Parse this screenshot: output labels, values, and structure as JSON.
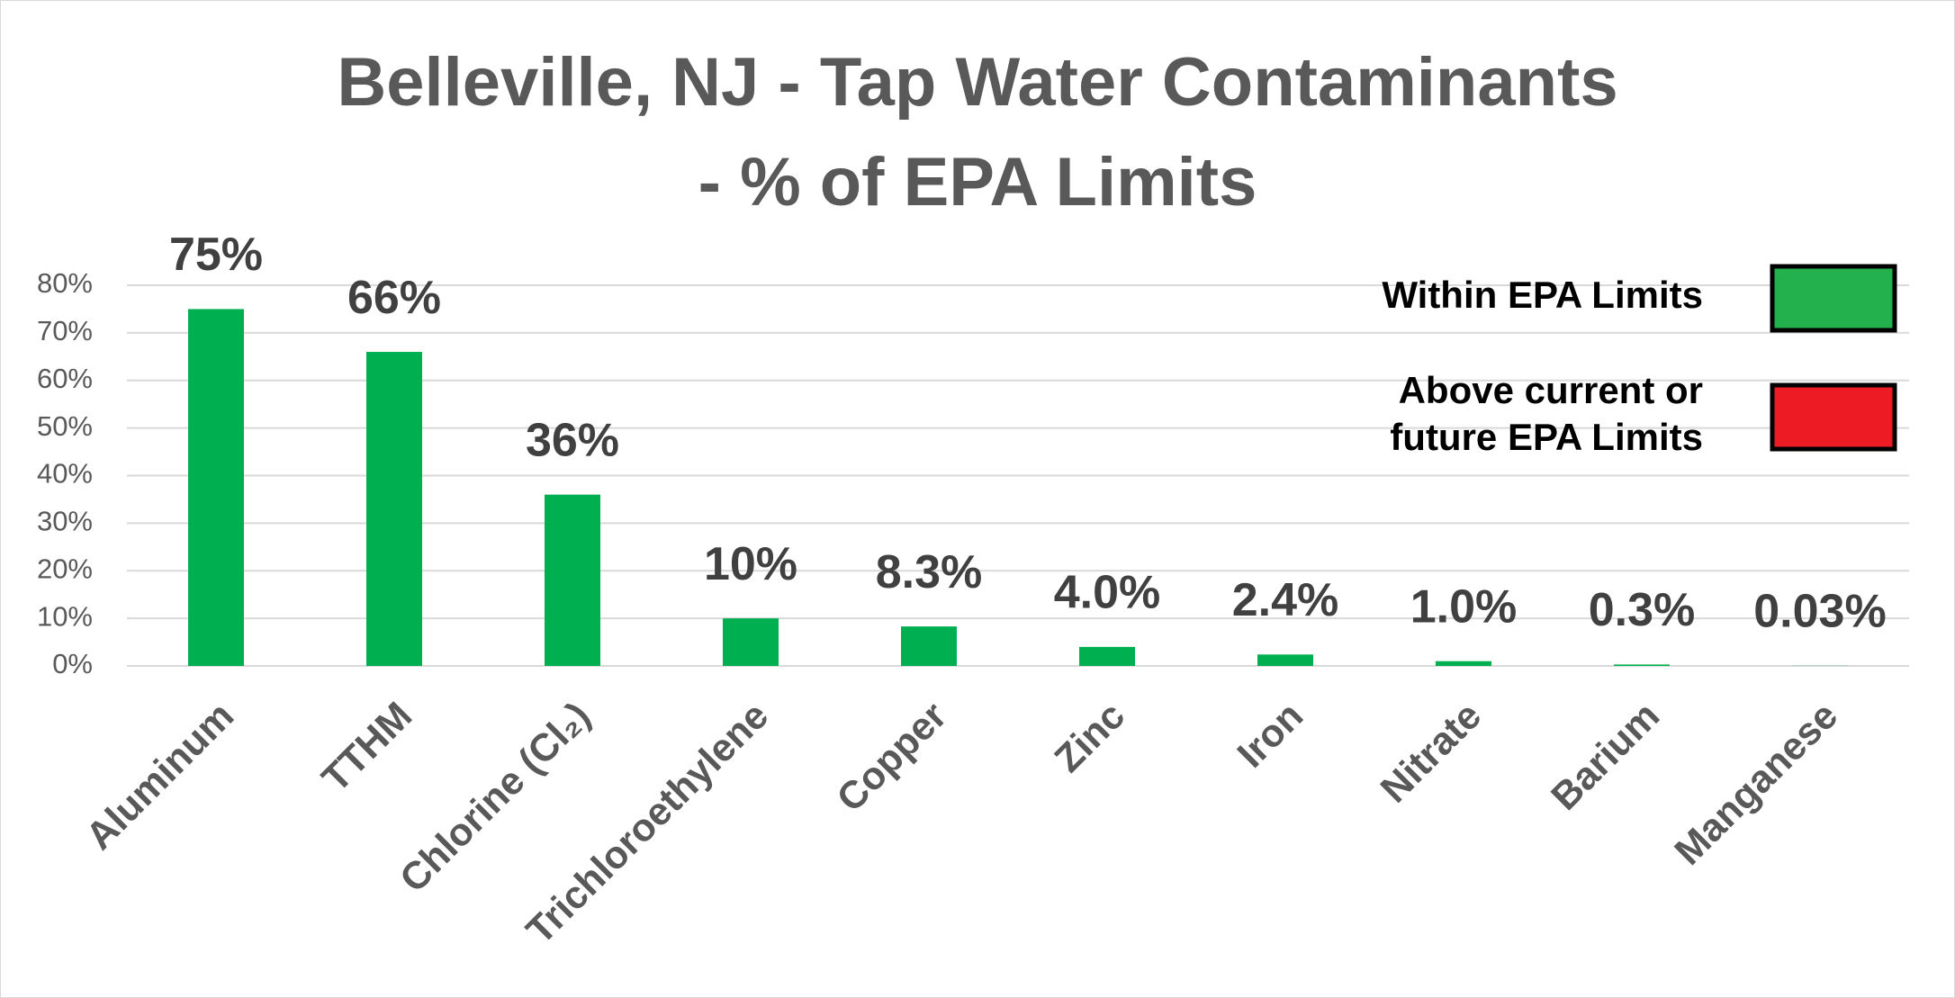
{
  "chart_data": {
    "type": "bar",
    "title": [
      "Belleville, NJ - Tap Water Contaminants",
      "- % of EPA  Limits"
    ],
    "categories": [
      "Aluminum",
      "TTHM",
      "Chlorine (Cl₂)",
      "Trichloroethylene",
      "Copper",
      "Zinc",
      "Iron",
      "Nitrate",
      "Barium",
      "Manganese"
    ],
    "values": [
      75,
      66,
      36,
      10,
      8.3,
      4.0,
      2.4,
      1.0,
      0.3,
      0.03
    ],
    "value_labels": [
      "75%",
      "66%",
      "36%",
      "10%",
      "8.3%",
      "4.0%",
      "2.4%",
      "1.0%",
      "0.3%",
      "0.03%"
    ],
    "color": "#00b050",
    "ylim": [
      0,
      80
    ],
    "yticks": [
      {
        "value": 0,
        "label": "0%"
      },
      {
        "value": 10,
        "label": "10%"
      },
      {
        "value": 20,
        "label": "20%"
      },
      {
        "value": 30,
        "label": "30%"
      },
      {
        "value": 40,
        "label": "40%"
      },
      {
        "value": 50,
        "label": "50%"
      },
      {
        "value": 60,
        "label": "60%"
      },
      {
        "value": 70,
        "label": "70%"
      },
      {
        "value": 80,
        "label": "80%"
      }
    ],
    "grid": true,
    "legend": [
      {
        "lines": [
          "Within EPA Limits"
        ],
        "color": "#22b14c"
      },
      {
        "lines": [
          "Above current or",
          "future EPA Limits"
        ],
        "color": "#ed1c24"
      }
    ]
  }
}
